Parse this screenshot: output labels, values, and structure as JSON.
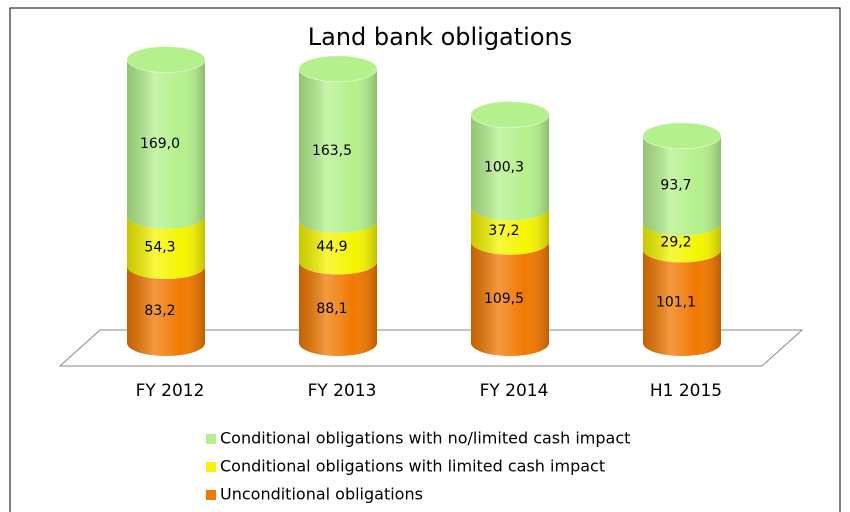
{
  "chart_data": {
    "type": "stacked-cylinder",
    "title": "Land bank obligations",
    "categories": [
      "FY 2012",
      "FY 2013",
      "FY 2014",
      "H1 2015"
    ],
    "series": [
      {
        "name": "Conditional obligations with no/limited cash impact",
        "color": "#b4f08c",
        "values": [
          169.0,
          163.5,
          100.3,
          93.7
        ],
        "value_labels": [
          "169,0",
          "163,5",
          "100,3",
          "93,7"
        ]
      },
      {
        "name": "Conditional obligations with limited cash impact",
        "color": "#f5f500",
        "values": [
          54.3,
          44.9,
          37.2,
          29.2
        ],
        "value_labels": [
          "54,3",
          "44,9",
          "37,2",
          "29,2"
        ]
      },
      {
        "name": "Unconditional obligations",
        "color": "#f07800",
        "values": [
          83.2,
          88.1,
          109.5,
          101.1
        ],
        "value_labels": [
          "83,2",
          "88,1",
          "109,5",
          "101,1"
        ]
      }
    ]
  }
}
